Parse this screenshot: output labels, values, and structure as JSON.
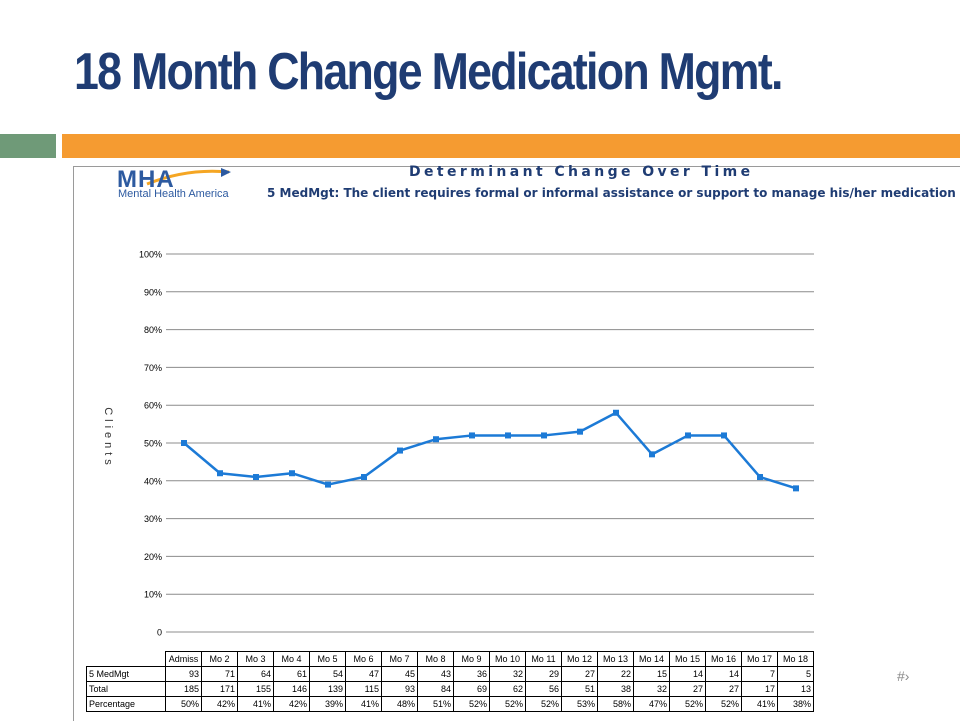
{
  "slide": {
    "title": "18 Month Change Medication Mgmt.",
    "slide_number": "#›"
  },
  "logo": {
    "word": "MHA",
    "subtitle": "Mental Health America"
  },
  "colors": {
    "title": "#1f3c73",
    "accent_orange": "#f59b31",
    "accent_green": "#6f9a78",
    "series_line": "#1c7ad6"
  },
  "chart_data": {
    "type": "line",
    "title": "Determinant Change Over Time",
    "subtitle": "5 MedMgt: The client requires formal or informal assistance or support  to manage his/her medication",
    "ylabel": "Clients",
    "xlabel": "",
    "ylim": [
      0,
      100
    ],
    "y_ticks": [
      "0",
      "10%",
      "20%",
      "30%",
      "40%",
      "50%",
      "60%",
      "70%",
      "80%",
      "90%",
      "100%"
    ],
    "grid": true,
    "categories": [
      "Admiss",
      "Mo 2",
      "Mo 3",
      "Mo 4",
      "Mo 5",
      "Mo 6",
      "Mo 7",
      "Mo 8",
      "Mo 9",
      "Mo 10",
      "Mo 11",
      "Mo 12",
      "Mo 13",
      "Mo 14",
      "Mo 15",
      "Mo 16",
      "Mo 17",
      "Mo 18"
    ],
    "series": [
      {
        "values": [
          50,
          42,
          41,
          42,
          39,
          41,
          48,
          51,
          52,
          52,
          52,
          53,
          58,
          47,
          52,
          52,
          41,
          38
        ]
      }
    ],
    "table": {
      "rows": [
        {
          "label": "5 MedMgt",
          "values": [
            "93",
            "71",
            "64",
            "61",
            "54",
            "47",
            "45",
            "43",
            "36",
            "32",
            "29",
            "27",
            "22",
            "15",
            "14",
            "14",
            "7",
            "5"
          ]
        },
        {
          "label": "Total",
          "values": [
            "185",
            "171",
            "155",
            "146",
            "139",
            "115",
            "93",
            "84",
            "69",
            "62",
            "56",
            "51",
            "38",
            "32",
            "27",
            "27",
            "17",
            "13"
          ]
        },
        {
          "label": "Percentage",
          "values": [
            "50%",
            "42%",
            "41%",
            "42%",
            "39%",
            "41%",
            "48%",
            "51%",
            "52%",
            "52%",
            "52%",
            "53%",
            "58%",
            "47%",
            "52%",
            "52%",
            "41%",
            "38%"
          ]
        }
      ]
    }
  }
}
